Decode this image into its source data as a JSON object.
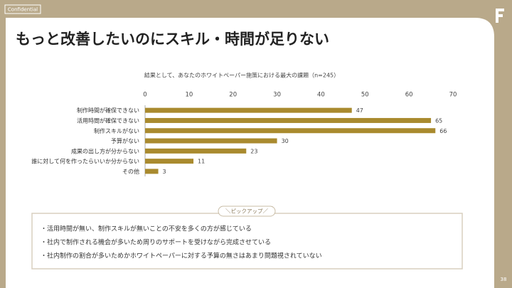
{
  "header": {
    "confidential": "Confidential",
    "title": "もっと改善したいのにスキル・時間が足りない"
  },
  "chart_data": {
    "type": "bar",
    "orientation": "horizontal",
    "title": "結果として、あなたのホワイトペーパー施策における最大の課題（n=245）",
    "categories": [
      "制作時間が確保できない",
      "活用時間が確保できない",
      "制作スキルがない",
      "予算がない",
      "成果の出し方が分からない",
      "誰に対して何を作ったらいいか分からない",
      "その他"
    ],
    "values": [
      47,
      65,
      66,
      30,
      23,
      11,
      3
    ],
    "color": "#a98a2e",
    "xlim": [
      0,
      70
    ],
    "xticks": [
      0,
      10,
      20,
      30,
      40,
      50,
      60,
      70
    ]
  },
  "pickup": {
    "label": "＼ピックアップ／",
    "items": [
      "・活用時間が無い、制作スキルが無いことの不安を多くの方が感じている",
      "・社内で制作される機会が多いため周りのサポートを受けながら完成させている",
      "・社内制作の割合が多いためかホワイトペーパーに対する予算の無さはあまり問題視されていない"
    ]
  },
  "page_number": "38"
}
